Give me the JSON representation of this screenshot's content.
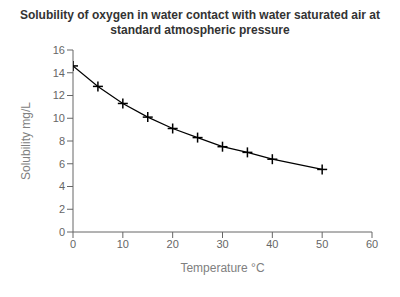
{
  "chart_data": {
    "type": "line",
    "title": "Solubility of oxygen in water contact with water saturated air at\nstandard atmospheric pressure",
    "xlabel": "Temperature °C",
    "ylabel": "Solubility mg/L",
    "x": [
      0,
      5,
      10,
      15,
      20,
      25,
      30,
      35,
      40,
      50
    ],
    "values": [
      14.6,
      12.8,
      11.3,
      10.1,
      9.1,
      8.3,
      7.5,
      7.0,
      6.4,
      5.5
    ],
    "color": "black",
    "marker": "plus",
    "xlim": [
      0,
      60
    ],
    "ylim": [
      0,
      16
    ],
    "xticks": [
      0,
      10,
      20,
      30,
      40,
      50,
      60
    ],
    "yticks": [
      0,
      2,
      4,
      6,
      8,
      10,
      12,
      14,
      16
    ],
    "grid": false
  }
}
